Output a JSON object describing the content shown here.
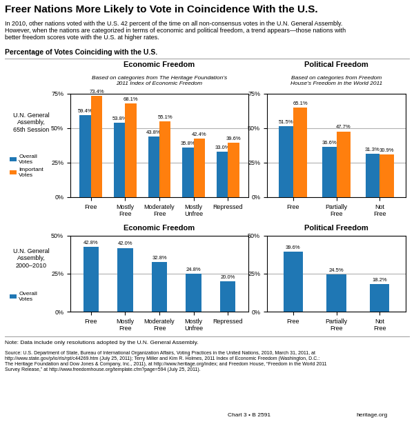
{
  "title": "Freer Nations More Likely to Vote in Coincidence With the U.S.",
  "subtitle": "In 2010, other nations voted with the U.S. 42 percent of the time on all non-consensus votes in the U.N. General Assembly.\nHowever, when the nations are categorized in terms of economic and political freedom, a trend appears—those nations with\nbetter freedom scores vote with the U.S. at higher rates.",
  "annotations": [
    "Percentage of Votes Coinciding with the U.S.",
    "Note: Data include only resolutions adopted by the U.N. General Assembly.",
    "Source: U.S. Department of State, Bureau of International Organization Affairs, Voting Practices in the United Nations, 2010, March 31, 2011, at\nhttp://www.state.gov/p/io/rls/rpt/c44269.htm (July 25, 2011); Terry Miller and Kim R. Holmes, 2011 Index of Economic Freedom (Washington, D.C.:\nThe Heritage Foundation and Dow Jones & Company, Inc., 2011), at http://www.heritage.org/index; and Freedom House, “Freedom in the World 2011\nSurvey Release,” at http://www.freedomhouse.org/template.cfm?page=594 (July 25, 2011).",
    "Chart 3 • B 2591",
    "heritage.org"
  ],
  "chart_data": [
    {
      "type": "bar",
      "title": "Economic Freedom",
      "subtitle": "Based on categories from The Heritage Foundation’s\n2011 Index of Economic Freedom",
      "annotations": [
        "U.N. General\nAssembly,\n65th Session"
      ],
      "categories": [
        "Free",
        "Mostly\nFree",
        "Moderately\nFree",
        "Mostly\nUnfree",
        "Repressed"
      ],
      "series": [
        {
          "name": "Overall\nVotes",
          "values": [
            59.4,
            53.8,
            43.8,
            35.8,
            33.0
          ],
          "value_labels": [
            "59.4%",
            "53.8%",
            "43.8%",
            "35.8%",
            "33.0%"
          ]
        },
        {
          "name": "Important\nVotes",
          "values": [
            73.4,
            68.1,
            55.1,
            42.4,
            39.6
          ],
          "value_labels": [
            "73.4%",
            "68.1%",
            "55.1%",
            "42.4%",
            "39.6%"
          ]
        }
      ],
      "ylim": [
        0,
        75
      ],
      "yticks": [
        {
          "value": 0,
          "label": "0%"
        },
        {
          "value": 25,
          "label": "25%"
        },
        {
          "value": 50,
          "label": "50%"
        },
        {
          "value": 75,
          "label": "75%"
        }
      ],
      "grid": true,
      "data_labels": true,
      "legend": "center left"
    },
    {
      "type": "bar",
      "title": "Political Freedom",
      "subtitle": "Based on categories from Freedom\nHouse’s Freedom in the World 2011",
      "categories": [
        "Free",
        "Partially\nFree",
        "Not\nFree"
      ],
      "series": [
        {
          "name": "Overall\nVotes",
          "values": [
            51.5,
            36.6,
            31.3
          ],
          "value_labels": [
            "51.5%",
            "36.6%",
            "31.3%"
          ]
        },
        {
          "name": "Important\nVotes",
          "values": [
            65.1,
            47.7,
            30.9
          ],
          "value_labels": [
            "65.1%",
            "47.7%",
            "30.9%"
          ]
        }
      ],
      "ylim": [
        0,
        75
      ],
      "yticks": [
        {
          "value": 0,
          "label": "0%"
        },
        {
          "value": 25,
          "label": "25%"
        },
        {
          "value": 50,
          "label": "50%"
        },
        {
          "value": 75,
          "label": "75%"
        }
      ],
      "grid": true,
      "data_labels": true
    },
    {
      "type": "bar",
      "title": "Economic Freedom",
      "annotations": [
        "U.N. General\nAssembly,\n2000–2010"
      ],
      "categories": [
        "Free",
        "Mostly\nFree",
        "Moderately\nFree",
        "Mostly\nUnfree",
        "Repressed"
      ],
      "series": [
        {
          "name": "Overall\nVotes",
          "values": [
            42.8,
            42.0,
            32.8,
            24.8,
            20.0
          ],
          "value_labels": [
            "42.8%",
            "42.0%",
            "32.8%",
            "24.8%",
            "20.0%"
          ]
        }
      ],
      "ylim": [
        0,
        50
      ],
      "yticks": [
        {
          "value": 0,
          "label": "0%"
        },
        {
          "value": 25,
          "label": "25%"
        },
        {
          "value": 50,
          "label": "50%"
        }
      ],
      "grid": true,
      "data_labels": true,
      "legend": "center left"
    },
    {
      "type": "bar",
      "title": "Political Freedom",
      "categories": [
        "Free",
        "Partially\nFree",
        "Not\nFree"
      ],
      "series": [
        {
          "name": "Overall\nVotes",
          "values": [
            39.6,
            24.5,
            18.2
          ],
          "value_labels": [
            "39.6%",
            "24.5%",
            "18.2%"
          ]
        }
      ],
      "ylim": [
        0,
        50
      ],
      "yticks": [
        {
          "value": 0,
          "label": "0%"
        },
        {
          "value": 25,
          "label": "25%"
        },
        {
          "value": 50,
          "label": "50%"
        }
      ],
      "grid": true,
      "data_labels": true
    }
  ]
}
